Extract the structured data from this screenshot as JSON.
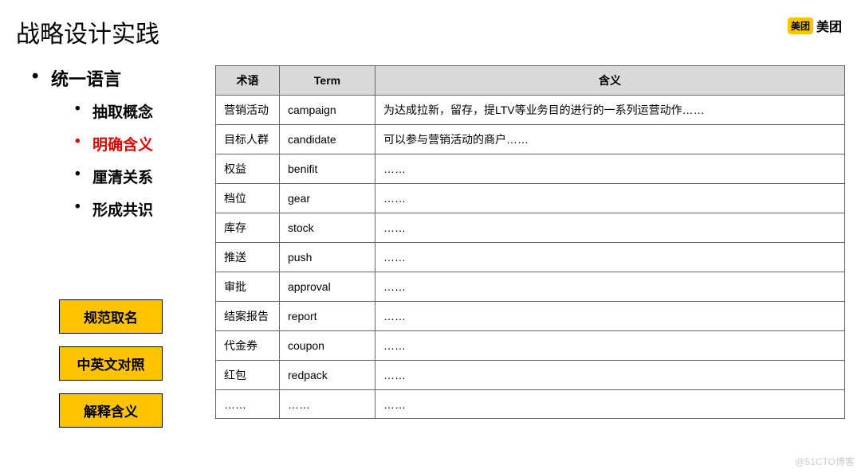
{
  "title": "战略设计实践",
  "logo": {
    "badge": "美团",
    "text": "美团"
  },
  "main_bullet": "统一语言",
  "sub_bullets": [
    {
      "label": "抽取概念",
      "active": false
    },
    {
      "label": "明确含义",
      "active": true
    },
    {
      "label": "厘清关系",
      "active": false
    },
    {
      "label": "形成共识",
      "active": false
    }
  ],
  "badges": [
    "规范取名",
    "中英文对照",
    "解释含义"
  ],
  "table": {
    "headers": [
      "术语",
      "Term",
      "含义"
    ],
    "col_widths": [
      "80px",
      "120px",
      "auto"
    ],
    "rows": [
      [
        "营销活动",
        "campaign",
        "为达成拉新，留存，提LTV等业务目的进行的一系列运营动作……"
      ],
      [
        "目标人群",
        "candidate",
        "可以参与营销活动的商户……"
      ],
      [
        "权益",
        "benifit",
        "……"
      ],
      [
        "档位",
        "gear",
        "……"
      ],
      [
        "库存",
        "stock",
        "……"
      ],
      [
        "推送",
        "push",
        "……"
      ],
      [
        "审批",
        "approval",
        "……"
      ],
      [
        "结案报告",
        "report",
        "……"
      ],
      [
        "代金券",
        "coupon",
        "……"
      ],
      [
        "红包",
        "redpack",
        "……"
      ],
      [
        "……",
        "……",
        "……"
      ]
    ]
  },
  "watermark": "@51CTO博客"
}
